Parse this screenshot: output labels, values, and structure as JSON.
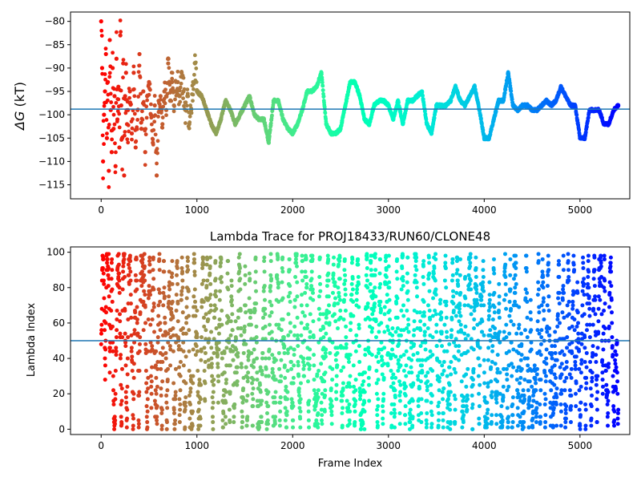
{
  "chart_data": [
    {
      "type": "scatter",
      "title": "",
      "xlabel": "",
      "ylabel": "ΔG (kT)",
      "ylabel_symbol": "ΔG",
      "ylabel_unit": "(kT)",
      "xlim": [
        -320,
        5520
      ],
      "ylim": [
        -118,
        -78
      ],
      "xticks": [
        0,
        1000,
        2000,
        3000,
        4000,
        5000
      ],
      "xtick_labels": [
        "0",
        "1000",
        "2000",
        "3000",
        "4000",
        "5000"
      ],
      "yticks": [
        -115,
        -110,
        -105,
        -100,
        -95,
        -90,
        -85,
        -80
      ],
      "ytick_labels": [
        "−115",
        "−110",
        "−105",
        "−100",
        "−95",
        "−90",
        "−85",
        "−80"
      ],
      "hline": -98.8,
      "hline_color": "#1f77b4",
      "colormap": "rainbow (frame index: early = red, late = violet)",
      "grid": false,
      "points": [
        [
          0,
          -80
        ],
        [
          10,
          -90
        ],
        [
          20,
          -110
        ],
        [
          30,
          -100
        ],
        [
          40,
          -95
        ],
        [
          50,
          -87
        ],
        [
          60,
          -105
        ],
        [
          70,
          -93
        ],
        [
          80,
          -112
        ],
        [
          90,
          -84
        ],
        [
          100,
          -99
        ],
        [
          110,
          -108
        ],
        [
          120,
          -90
        ],
        [
          130,
          -103
        ],
        [
          140,
          -96
        ],
        [
          150,
          -111
        ],
        [
          160,
          -88
        ],
        [
          170,
          -101
        ],
        [
          180,
          -94
        ],
        [
          190,
          -107
        ],
        [
          200,
          -83
        ],
        [
          210,
          -98
        ],
        [
          220,
          -105
        ],
        [
          230,
          -89
        ],
        [
          240,
          -113
        ],
        [
          250,
          -96
        ],
        [
          260,
          -91
        ],
        [
          270,
          -102
        ],
        [
          280,
          -99
        ],
        [
          300,
          -95
        ],
        [
          320,
          -104
        ],
        [
          340,
          -91
        ],
        [
          360,
          -107
        ],
        [
          380,
          -99
        ],
        [
          400,
          -87
        ],
        [
          420,
          -103
        ],
        [
          440,
          -95
        ],
        [
          460,
          -108
        ],
        [
          480,
          -96
        ],
        [
          500,
          -93
        ],
        [
          520,
          -100
        ],
        [
          540,
          -106
        ],
        [
          560,
          -98
        ],
        [
          580,
          -113
        ],
        [
          600,
          -97
        ],
        [
          620,
          -96
        ],
        [
          640,
          -102
        ],
        [
          660,
          -95
        ],
        [
          680,
          -99
        ],
        [
          700,
          -89
        ],
        [
          720,
          -97
        ],
        [
          740,
          -93
        ],
        [
          760,
          -98
        ],
        [
          780,
          -95
        ],
        [
          800,
          -93
        ],
        [
          820,
          -96
        ],
        [
          840,
          -91
        ],
        [
          860,
          -95
        ],
        [
          880,
          -99
        ],
        [
          900,
          -96
        ],
        [
          920,
          -102
        ],
        [
          940,
          -99
        ],
        [
          960,
          -93
        ],
        [
          980,
          -89
        ],
        [
          1000,
          -95
        ],
        [
          1050,
          -96
        ],
        [
          1100,
          -99
        ],
        [
          1150,
          -102
        ],
        [
          1200,
          -104
        ],
        [
          1250,
          -101
        ],
        [
          1300,
          -97
        ],
        [
          1350,
          -99
        ],
        [
          1400,
          -102
        ],
        [
          1450,
          -100
        ],
        [
          1500,
          -98
        ],
        [
          1550,
          -96
        ],
        [
          1600,
          -100
        ],
        [
          1650,
          -101
        ],
        [
          1700,
          -101
        ],
        [
          1750,
          -106
        ],
        [
          1800,
          -97
        ],
        [
          1850,
          -97
        ],
        [
          1900,
          -101
        ],
        [
          1950,
          -103
        ],
        [
          2000,
          -104
        ],
        [
          2050,
          -102
        ],
        [
          2100,
          -99
        ],
        [
          2150,
          -95
        ],
        [
          2200,
          -95
        ],
        [
          2250,
          -94
        ],
        [
          2300,
          -91
        ],
        [
          2350,
          -102
        ],
        [
          2400,
          -104
        ],
        [
          2450,
          -104
        ],
        [
          2500,
          -103
        ],
        [
          2550,
          -98
        ],
        [
          2600,
          -93
        ],
        [
          2650,
          -93
        ],
        [
          2700,
          -96
        ],
        [
          2750,
          -101
        ],
        [
          2800,
          -102
        ],
        [
          2850,
          -98
        ],
        [
          2900,
          -97
        ],
        [
          2950,
          -97
        ],
        [
          3000,
          -98
        ],
        [
          3050,
          -101
        ],
        [
          3100,
          -97
        ],
        [
          3150,
          -102
        ],
        [
          3200,
          -97
        ],
        [
          3250,
          -97
        ],
        [
          3300,
          -96
        ],
        [
          3350,
          -95
        ],
        [
          3400,
          -102
        ],
        [
          3450,
          -104
        ],
        [
          3500,
          -98
        ],
        [
          3550,
          -98
        ],
        [
          3600,
          -98
        ],
        [
          3650,
          -97
        ],
        [
          3700,
          -94
        ],
        [
          3750,
          -97
        ],
        [
          3800,
          -98
        ],
        [
          3850,
          -96
        ],
        [
          3900,
          -94
        ],
        [
          3950,
          -99
        ],
        [
          4000,
          -105
        ],
        [
          4050,
          -105
        ],
        [
          4100,
          -101
        ],
        [
          4150,
          -97
        ],
        [
          4200,
          -97
        ],
        [
          4250,
          -91
        ],
        [
          4300,
          -98
        ],
        [
          4350,
          -99
        ],
        [
          4400,
          -98
        ],
        [
          4450,
          -98
        ],
        [
          4500,
          -99
        ],
        [
          4550,
          -99
        ],
        [
          4600,
          -98
        ],
        [
          4650,
          -97
        ],
        [
          4700,
          -98
        ],
        [
          4750,
          -97
        ],
        [
          4800,
          -94
        ],
        [
          4850,
          -96
        ],
        [
          4900,
          -98
        ],
        [
          4950,
          -98
        ],
        [
          5000,
          -105
        ],
        [
          5050,
          -105
        ],
        [
          5100,
          -99
        ],
        [
          5150,
          -99
        ],
        [
          5200,
          -99
        ],
        [
          5250,
          -102
        ],
        [
          5300,
          -102
        ],
        [
          5350,
          -99
        ],
        [
          5400,
          -98
        ]
      ]
    },
    {
      "type": "scatter",
      "title": "Lambda Trace for PROJ18433/RUN60/CLONE48",
      "xlabel": "Frame Index",
      "ylabel": "Lambda Index",
      "xlim": [
        -320,
        5520
      ],
      "ylim": [
        -3,
        103
      ],
      "xticks": [
        0,
        1000,
        2000,
        3000,
        4000,
        5000
      ],
      "xtick_labels": [
        "0",
        "1000",
        "2000",
        "3000",
        "4000",
        "5000"
      ],
      "yticks": [
        0,
        20,
        40,
        60,
        80,
        100
      ],
      "ytick_labels": [
        "0",
        "20",
        "40",
        "60",
        "80",
        "100"
      ],
      "hline": 50,
      "hline_color": "#1f77b4",
      "colormap": "rainbow (frame index: early = red, late = violet)",
      "grid": false,
      "frame_max": 5400,
      "approx_point_count": 3000
    }
  ]
}
